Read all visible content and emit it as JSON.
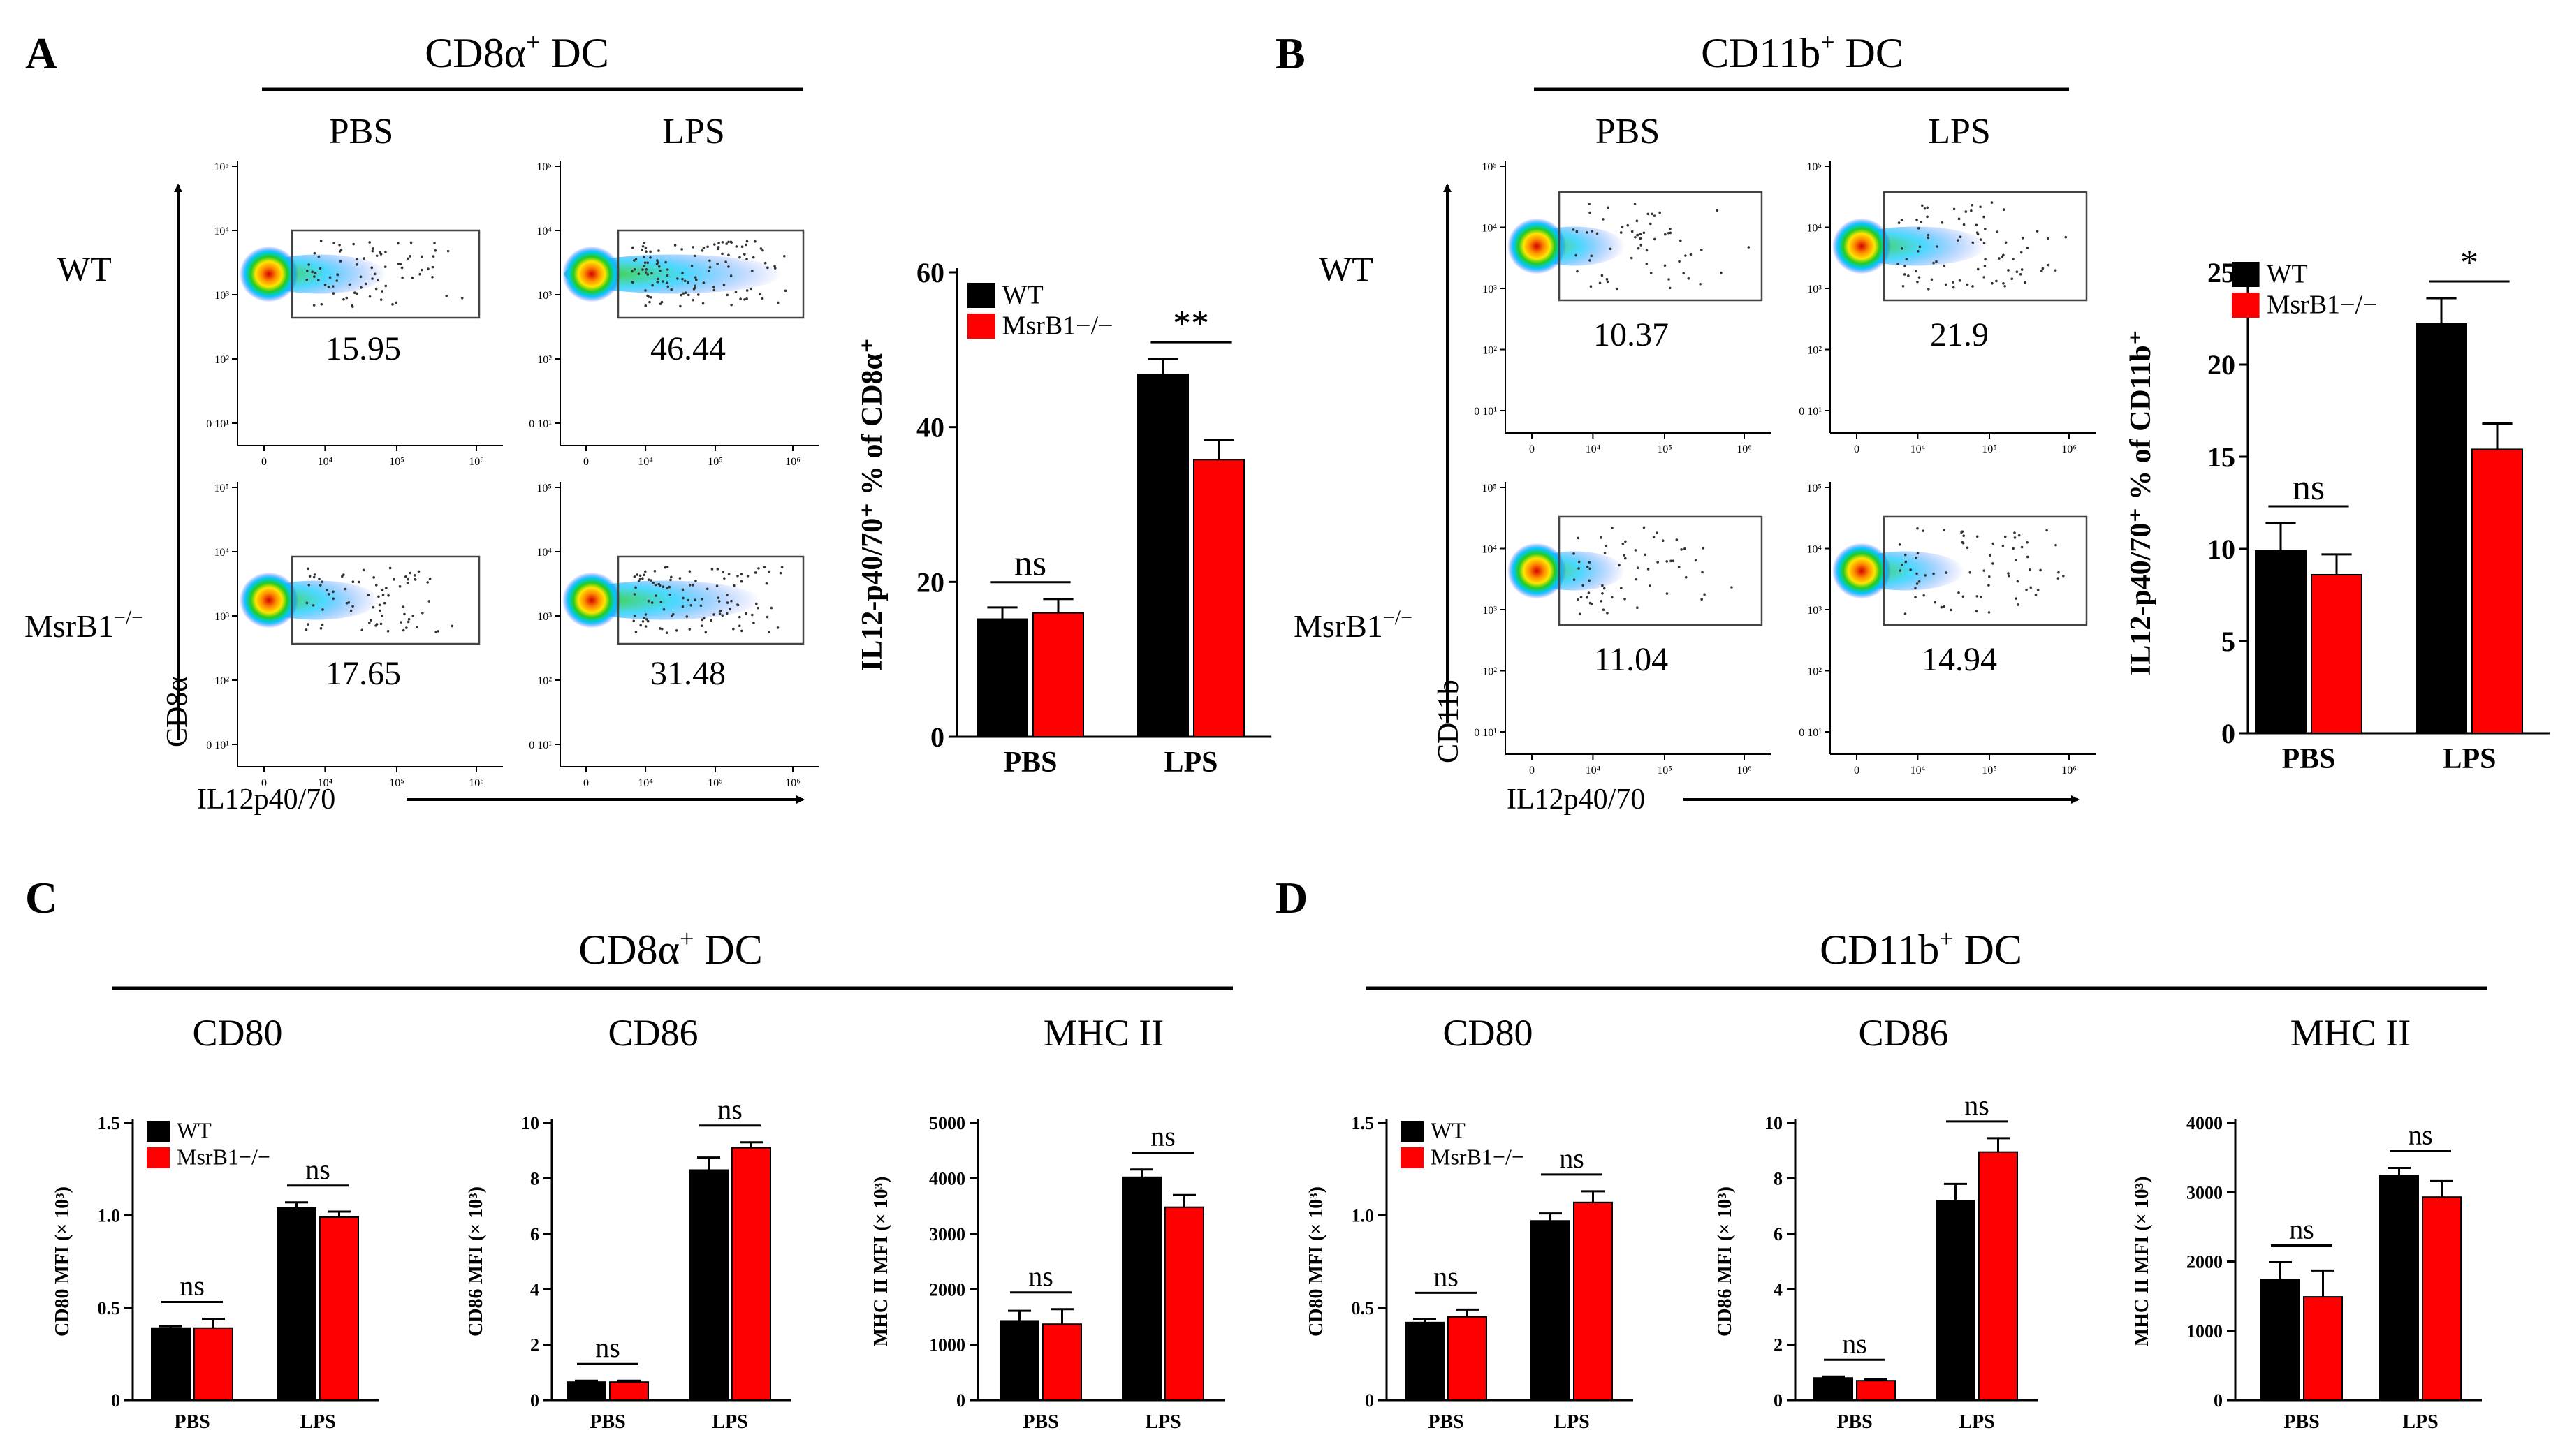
{
  "colors": {
    "wt": "#000000",
    "ko": "#ff0000",
    "gate": "#444444"
  },
  "labels": {
    "wt": "WT",
    "ko": "MsrB1",
    "ko_sup": "−/−",
    "pbs": "PBS",
    "lps": "LPS",
    "il12": "IL12p40/70",
    "cd8a": "CD8α",
    "cd11b": "CD11b"
  },
  "panels": [
    {
      "letter": "A",
      "title": "CD8α",
      "title_sup": "+",
      "title_suffix": " DC",
      "y_channel": "CD8α",
      "gates": {
        "wt_pbs": "15.95",
        "wt_lps": "46.44",
        "ko_pbs": "17.65",
        "ko_lps": "31.48"
      }
    },
    {
      "letter": "B",
      "title": "CD11b",
      "title_sup": "+",
      "title_suffix": " DC",
      "y_channel": "CD11b",
      "gates": {
        "wt_pbs": "10.37",
        "wt_lps": "21.9",
        "ko_pbs": "11.04",
        "ko_lps": "14.94"
      }
    },
    {
      "letter": "C",
      "title": "CD8α",
      "title_sup": "+",
      "title_suffix": " DC",
      "markers": [
        "CD80",
        "CD86",
        "MHC II"
      ]
    },
    {
      "letter": "D",
      "title": "CD11b",
      "title_sup": "+",
      "title_suffix": " DC",
      "markers": [
        "CD80",
        "CD86",
        "MHC II"
      ]
    }
  ],
  "flow_ticks": {
    "y": [
      "10⁵",
      "10⁴",
      "10³",
      "10²",
      "0 10¹"
    ],
    "x": [
      "0",
      "10⁴",
      "10⁵",
      "10⁶"
    ]
  },
  "chart_data": [
    {
      "id": "A-bar",
      "type": "bar",
      "title": "",
      "ylabel": "IL12-p40/70⁺ % of CD8α⁺",
      "xlabel": "",
      "categories": [
        "PBS",
        "LPS"
      ],
      "series": [
        {
          "name": "WT",
          "values": [
            15.2,
            46.8
          ],
          "errors": [
            1.5,
            2.0
          ]
        },
        {
          "name": "MsrB1−/−",
          "values": [
            16.0,
            35.8
          ],
          "errors": [
            1.8,
            2.5
          ]
        }
      ],
      "ylim": [
        0,
        60
      ],
      "yticks": [
        "0",
        "20",
        "40",
        "60"
      ],
      "significance": [
        "ns",
        "**"
      ],
      "legend": "top-left"
    },
    {
      "id": "B-bar",
      "type": "bar",
      "title": "",
      "ylabel": "IL12-p40/70⁺ % of CD11b⁺",
      "xlabel": "",
      "categories": [
        "PBS",
        "LPS"
      ],
      "series": [
        {
          "name": "WT",
          "values": [
            9.9,
            22.2
          ],
          "errors": [
            1.5,
            1.4
          ]
        },
        {
          "name": "MsrB1−/−",
          "values": [
            8.6,
            15.4
          ],
          "errors": [
            1.1,
            1.4
          ]
        }
      ],
      "ylim": [
        0,
        25
      ],
      "yticks": [
        "0",
        "5",
        "10",
        "15",
        "20",
        "25"
      ],
      "significance": [
        "ns",
        "*"
      ],
      "legend": "top-left"
    },
    {
      "id": "C-CD80",
      "type": "bar",
      "title": "CD80",
      "ylabel": "CD80 MFI (× 10³)",
      "xlabel": "",
      "categories": [
        "PBS",
        "LPS"
      ],
      "series": [
        {
          "name": "WT",
          "values": [
            0.39,
            1.04
          ],
          "errors": [
            0.01,
            0.03
          ]
        },
        {
          "name": "MsrB1−/−",
          "values": [
            0.39,
            0.99
          ],
          "errors": [
            0.05,
            0.03
          ]
        }
      ],
      "ylim": [
        0,
        1.5
      ],
      "yticks": [
        "0",
        "0.5",
        "1.0",
        "1.5"
      ],
      "significance": [
        "ns",
        "ns"
      ],
      "legend": "top-left"
    },
    {
      "id": "C-CD86",
      "type": "bar",
      "title": "CD86",
      "ylabel": "CD86 MFI (× 10³)",
      "xlabel": "",
      "categories": [
        "PBS",
        "LPS"
      ],
      "series": [
        {
          "name": "WT",
          "values": [
            0.65,
            8.3
          ],
          "errors": [
            0.05,
            0.45
          ]
        },
        {
          "name": "MsrB1−/−",
          "values": [
            0.65,
            9.1
          ],
          "errors": [
            0.05,
            0.2
          ]
        }
      ],
      "ylim": [
        0,
        10
      ],
      "yticks": [
        "0",
        "2",
        "4",
        "6",
        "8",
        "10"
      ],
      "significance": [
        "ns",
        "ns"
      ]
    },
    {
      "id": "C-MHCII",
      "type": "bar",
      "title": "MHC II",
      "ylabel": "MHC II MFI (× 10³)",
      "xlabel": "",
      "categories": [
        "PBS",
        "LPS"
      ],
      "series": [
        {
          "name": "WT",
          "values": [
            1430,
            4020
          ],
          "errors": [
            180,
            140
          ]
        },
        {
          "name": "MsrB1−/−",
          "values": [
            1370,
            3480
          ],
          "errors": [
            270,
            220
          ]
        }
      ],
      "ylim": [
        0,
        5000
      ],
      "yticks": [
        "0",
        "1000",
        "2000",
        "3000",
        "4000",
        "5000"
      ],
      "significance": [
        "ns",
        "ns"
      ]
    },
    {
      "id": "D-CD80",
      "type": "bar",
      "title": "CD80",
      "ylabel": "CD80 MFI (× 10³)",
      "xlabel": "",
      "categories": [
        "PBS",
        "LPS"
      ],
      "series": [
        {
          "name": "WT",
          "values": [
            0.42,
            0.97
          ],
          "errors": [
            0.02,
            0.04
          ]
        },
        {
          "name": "MsrB1−/−",
          "values": [
            0.45,
            1.07
          ],
          "errors": [
            0.04,
            0.06
          ]
        }
      ],
      "ylim": [
        0,
        1.5
      ],
      "yticks": [
        "0",
        "0.5",
        "1.0",
        "1.5"
      ],
      "significance": [
        "ns",
        "ns"
      ],
      "legend": "top-left"
    },
    {
      "id": "D-CD86",
      "type": "bar",
      "title": "CD86",
      "ylabel": "CD86 MFI (× 10³)",
      "xlabel": "",
      "categories": [
        "PBS",
        "LPS"
      ],
      "series": [
        {
          "name": "WT",
          "values": [
            0.8,
            7.2
          ],
          "errors": [
            0.05,
            0.6
          ]
        },
        {
          "name": "MsrB1−/−",
          "values": [
            0.7,
            8.95
          ],
          "errors": [
            0.05,
            0.5
          ]
        }
      ],
      "ylim": [
        0,
        10
      ],
      "yticks": [
        "0",
        "2",
        "4",
        "6",
        "8",
        "10"
      ],
      "significance": [
        "ns",
        "ns"
      ]
    },
    {
      "id": "D-MHCII",
      "type": "bar",
      "title": "MHC II",
      "ylabel": "MHC II MFI (× 10³)",
      "xlabel": "",
      "categories": [
        "PBS",
        "LPS"
      ],
      "series": [
        {
          "name": "WT",
          "values": [
            1740,
            3240
          ],
          "errors": [
            250,
            110
          ]
        },
        {
          "name": "MsrB1−/−",
          "values": [
            1490,
            2930
          ],
          "errors": [
            380,
            230
          ]
        }
      ],
      "ylim": [
        0,
        4000
      ],
      "yticks": [
        "0",
        "1000",
        "2000",
        "3000",
        "4000"
      ],
      "significance": [
        "ns",
        "ns"
      ]
    }
  ]
}
